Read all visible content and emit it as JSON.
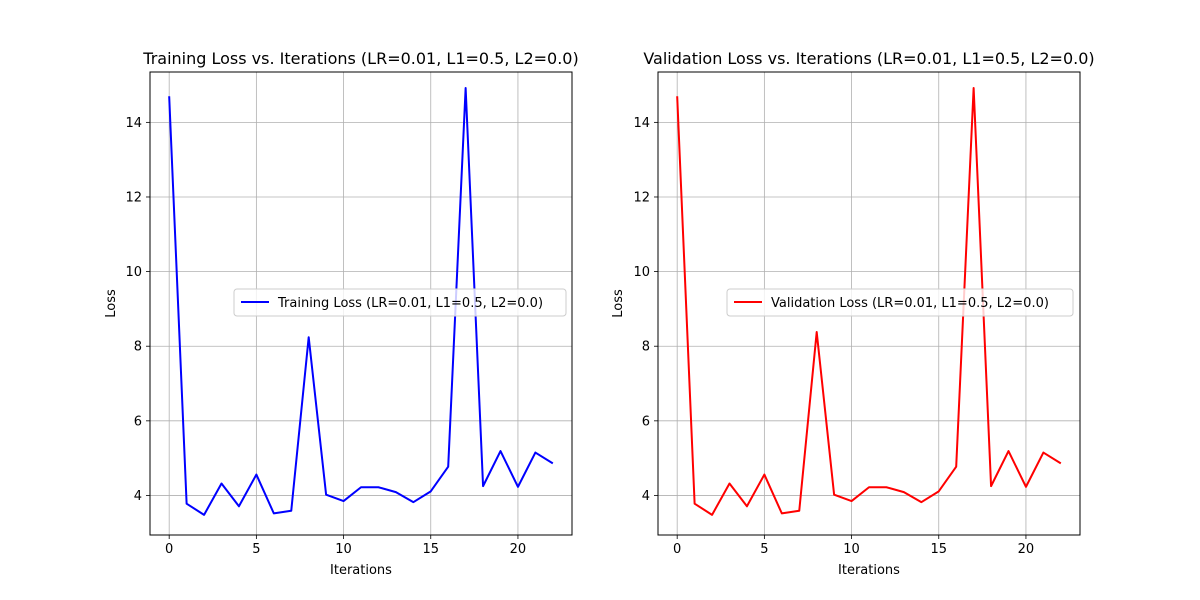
{
  "chart_data": [
    {
      "type": "line",
      "title": "Training Loss vs. Iterations (LR=0.01, L1=0.5, L2=0.0)",
      "xlabel": "Iterations",
      "ylabel": "Loss",
      "xlim": [
        -1.1,
        23.1
      ],
      "ylim": [
        2.94,
        15.35
      ],
      "xticks": [
        0,
        5,
        10,
        15,
        20
      ],
      "yticks": [
        4,
        6,
        8,
        10,
        12,
        14
      ],
      "grid": true,
      "legend_position": "center-right",
      "series": [
        {
          "name": "Training Loss (LR=0.01, L1=0.5, L2=0.0)",
          "color": "#0000ff",
          "x": [
            0,
            1,
            2,
            3,
            4,
            5,
            6,
            7,
            8,
            9,
            10,
            11,
            12,
            13,
            14,
            15,
            16,
            17,
            18,
            19,
            20,
            21,
            22
          ],
          "values": [
            14.7,
            3.78,
            3.48,
            4.32,
            3.71,
            4.56,
            3.52,
            3.59,
            8.24,
            4.02,
            3.85,
            4.22,
            4.22,
            4.09,
            3.82,
            4.11,
            4.77,
            14.92,
            4.25,
            5.19,
            4.23,
            5.15,
            4.86
          ]
        }
      ]
    },
    {
      "type": "line",
      "title": "Validation Loss vs. Iterations (LR=0.01, L1=0.5, L2=0.0)",
      "xlabel": "Iterations",
      "ylabel": "Loss",
      "xlim": [
        -1.1,
        23.1
      ],
      "ylim": [
        2.94,
        15.35
      ],
      "xticks": [
        0,
        5,
        10,
        15,
        20
      ],
      "yticks": [
        4,
        6,
        8,
        10,
        12,
        14
      ],
      "grid": true,
      "legend_position": "center-right",
      "series": [
        {
          "name": "Validation Loss (LR=0.01, L1=0.5, L2=0.0)",
          "color": "#ff0000",
          "x": [
            0,
            1,
            2,
            3,
            4,
            5,
            6,
            7,
            8,
            9,
            10,
            11,
            12,
            13,
            14,
            15,
            16,
            17,
            18,
            19,
            20,
            21,
            22
          ],
          "values": [
            14.7,
            3.78,
            3.48,
            4.32,
            3.71,
            4.56,
            3.52,
            3.59,
            8.38,
            4.02,
            3.85,
            4.22,
            4.22,
            4.09,
            3.82,
            4.11,
            4.77,
            14.92,
            4.25,
            5.19,
            4.23,
            5.15,
            4.86
          ]
        }
      ]
    }
  ]
}
